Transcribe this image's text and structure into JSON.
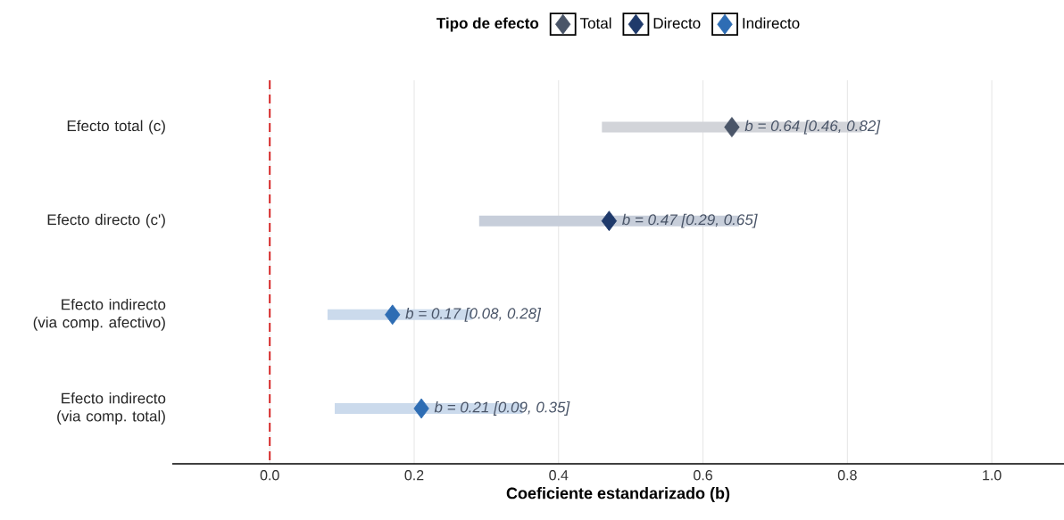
{
  "chart_data": {
    "type": "scatter",
    "orientation": "horizontal",
    "categories": [
      "Efecto total (c)",
      "Efecto directo (c')",
      "Efecto indirecto (via comp. afectivo)",
      "Efecto indirecto (via comp. total)"
    ],
    "xlabel": "Coeficiente estandarizado (b)",
    "legend_title": "Tipo de efecto",
    "legend": "top",
    "grid": "x",
    "marker": "diamond",
    "xlim": [
      -0.135,
      1.1
    ],
    "xticks": [
      {
        "value": 0,
        "label": "0.0"
      },
      {
        "value": 0.2,
        "label": "0.2"
      },
      {
        "value": 0.4,
        "label": "0.4"
      },
      {
        "value": 0.6,
        "label": "0.6"
      },
      {
        "value": 0.8,
        "label": "0.8"
      },
      {
        "value": 1.0,
        "label": "1.0"
      }
    ],
    "ref_lines": [
      {
        "axis": "x",
        "value": 0,
        "color": "#d62728",
        "line_style": "dashed"
      }
    ],
    "series": [
      {
        "name": "Total",
        "color": "#4a5568",
        "values": [
          0.64,
          null,
          null,
          null
        ],
        "errors": [
          [
            0.46,
            0.82
          ],
          null,
          null,
          null
        ],
        "value_labels": [
          "b = 0.64  [0.46, 0.82]",
          null,
          null,
          null
        ]
      },
      {
        "name": "Directo",
        "color": "#1f3a6b",
        "values": [
          null,
          0.47,
          null,
          null
        ],
        "errors": [
          null,
          [
            0.29,
            0.65
          ],
          null,
          null
        ],
        "value_labels": [
          null,
          "b = 0.47  [0.29, 0.65]",
          null,
          null
        ]
      },
      {
        "name": "Indirecto",
        "color": "#2e6db4",
        "values": [
          null,
          null,
          0.17,
          0.21
        ],
        "errors": [
          null,
          null,
          [
            0.08,
            0.28
          ],
          [
            0.09,
            0.35
          ]
        ],
        "value_labels": [
          null,
          null,
          "b = 0.17  [0.08, 0.28]",
          "b = 0.21  [0.09, 0.35]"
        ]
      }
    ]
  }
}
